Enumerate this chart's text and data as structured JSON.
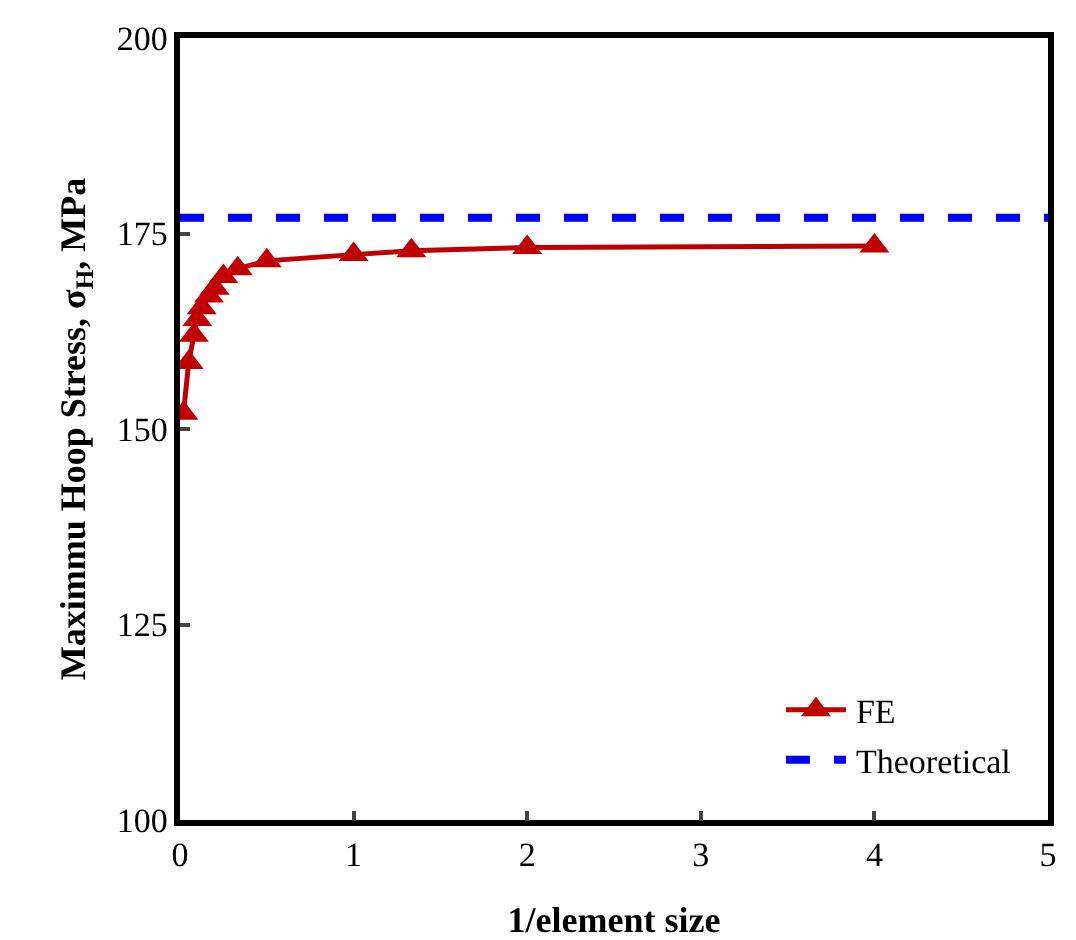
{
  "chart_data": {
    "type": "line",
    "xlabel": "1/element size",
    "ylabel": "Maximmu Hoop Stress, σ$_{H}$, MPa",
    "xlim": [
      0,
      5
    ],
    "xticks": [
      0,
      1,
      2,
      3,
      4,
      5
    ],
    "ylim": [
      100,
      200
    ],
    "yticks": [
      100,
      125,
      150,
      175,
      200
    ],
    "grid": false,
    "legend": "bottom right",
    "series": [
      {
        "name": "FE",
        "color": "#c00000",
        "marker": "triangle",
        "line_style": "solid",
        "x": [
          0.02,
          0.05,
          0.08,
          0.1,
          0.125,
          0.167,
          0.2,
          0.25,
          0.333,
          0.5,
          1,
          1.333,
          2,
          4
        ],
        "values": [
          152,
          158.5,
          162,
          164,
          165.5,
          167,
          168,
          169.5,
          170.5,
          171.5,
          172.3,
          172.8,
          173.2,
          173.4
        ]
      },
      {
        "name": "Theoretical",
        "color": "#0000ff",
        "marker": "none",
        "line_style": "dashed",
        "x": [
          0,
          5
        ],
        "values": [
          177,
          177
        ]
      }
    ]
  }
}
